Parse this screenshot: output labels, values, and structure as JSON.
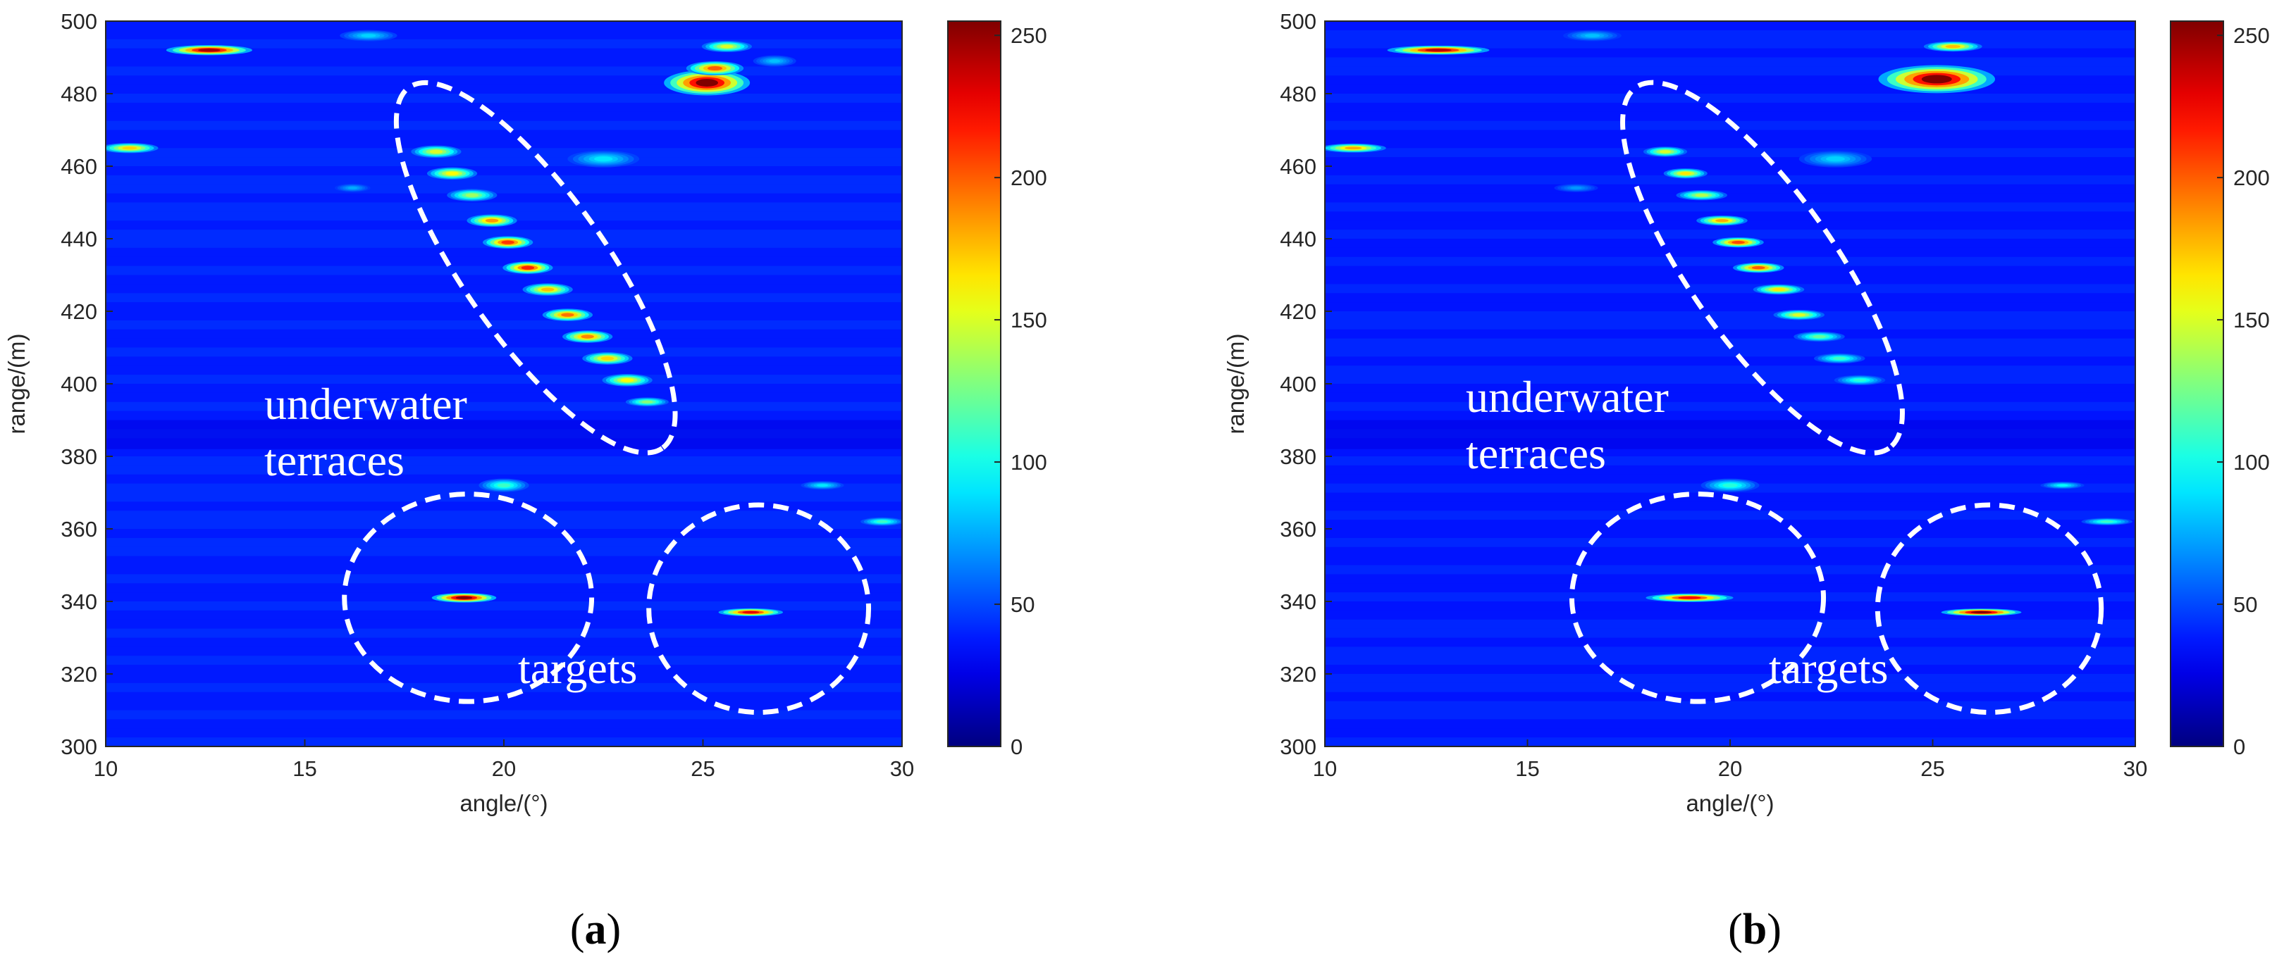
{
  "chart_data": [
    {
      "type": "heatmap",
      "panel_label": "(a)",
      "xlabel": "angle/(°)",
      "ylabel": "range/(m)",
      "xlim": [
        10,
        30
      ],
      "ylim": [
        300,
        500
      ],
      "xticks": [
        10,
        15,
        20,
        25,
        30
      ],
      "yticks": [
        300,
        320,
        340,
        360,
        380,
        400,
        420,
        440,
        460,
        480,
        500
      ],
      "colorbar": {
        "range": [
          0,
          255
        ],
        "ticks": [
          0,
          50,
          100,
          150,
          200,
          250
        ],
        "colormap": "jet"
      },
      "background_level": 40,
      "annotations": [
        {
          "text": "underwater terraces",
          "lines": [
            "underwater",
            "terraces"
          ]
        },
        {
          "text": "targets",
          "lines": [
            "targets"
          ]
        }
      ],
      "highlight_ellipses": [
        {
          "label": "underwater terraces",
          "center": [
            20.8,
            432
          ],
          "semi_axis_angle": 2.0,
          "semi_axis_range": 45,
          "tilt_deg": 55
        },
        {
          "label": "target 1",
          "center": [
            19.1,
            341
          ],
          "semi_axis_angle": 2.7,
          "semi_axis_range": 11,
          "tilt_deg": 0
        },
        {
          "label": "target 2",
          "center": [
            26.4,
            338
          ],
          "semi_axis_angle": 2.4,
          "semi_axis_range": 11,
          "tilt_deg": 0
        }
      ],
      "blobs": [
        {
          "angle": 12.6,
          "range": 492,
          "width": 1.2,
          "height": 1.8,
          "value": 245
        },
        {
          "angle": 10.6,
          "range": 465,
          "width": 0.8,
          "height": 1.8,
          "value": 170
        },
        {
          "angle": 25.1,
          "range": 483,
          "width": 1.2,
          "height": 4.5,
          "value": 255
        },
        {
          "angle": 25.3,
          "range": 487,
          "width": 0.8,
          "height": 2.5,
          "value": 200
        },
        {
          "angle": 25.6,
          "range": 493,
          "width": 0.7,
          "height": 2.0,
          "value": 150
        },
        {
          "angle": 18.3,
          "range": 464,
          "width": 0.7,
          "height": 2.2,
          "value": 150
        },
        {
          "angle": 18.7,
          "range": 458,
          "width": 0.7,
          "height": 2.2,
          "value": 160
        },
        {
          "angle": 19.2,
          "range": 452,
          "width": 0.7,
          "height": 2.2,
          "value": 135
        },
        {
          "angle": 19.7,
          "range": 445,
          "width": 0.7,
          "height": 2.2,
          "value": 185
        },
        {
          "angle": 20.1,
          "range": 439,
          "width": 0.7,
          "height": 2.2,
          "value": 210
        },
        {
          "angle": 20.6,
          "range": 432,
          "width": 0.7,
          "height": 2.2,
          "value": 215
        },
        {
          "angle": 21.1,
          "range": 426,
          "width": 0.7,
          "height": 2.2,
          "value": 175
        },
        {
          "angle": 21.6,
          "range": 419,
          "width": 0.7,
          "height": 2.2,
          "value": 195
        },
        {
          "angle": 22.1,
          "range": 413,
          "width": 0.7,
          "height": 2.2,
          "value": 190
        },
        {
          "angle": 22.6,
          "range": 407,
          "width": 0.7,
          "height": 2.2,
          "value": 170
        },
        {
          "angle": 23.1,
          "range": 401,
          "width": 0.7,
          "height": 2.2,
          "value": 160
        },
        {
          "angle": 23.6,
          "range": 395,
          "width": 0.6,
          "height": 1.6,
          "value": 130
        },
        {
          "angle": 20.0,
          "range": 372,
          "width": 0.7,
          "height": 2.4,
          "value": 110
        },
        {
          "angle": 19.0,
          "range": 341,
          "width": 0.9,
          "height": 1.7,
          "value": 255
        },
        {
          "angle": 26.2,
          "range": 337,
          "width": 0.9,
          "height": 1.4,
          "value": 230
        },
        {
          "angle": 29.5,
          "range": 362,
          "width": 0.6,
          "height": 1.5,
          "value": 110
        },
        {
          "angle": 28.0,
          "range": 372,
          "width": 0.6,
          "height": 1.5,
          "value": 90
        },
        {
          "angle": 16.6,
          "range": 496,
          "width": 0.8,
          "height": 2.0,
          "value": 85
        },
        {
          "angle": 22.5,
          "range": 462,
          "width": 1.0,
          "height": 3.0,
          "value": 90
        },
        {
          "angle": 26.8,
          "range": 489,
          "width": 0.6,
          "height": 2.0,
          "value": 80
        },
        {
          "angle": 16.2,
          "range": 454,
          "width": 0.5,
          "height": 1.5,
          "value": 75
        }
      ]
    },
    {
      "type": "heatmap",
      "panel_label": "(b)",
      "xlabel": "angle/(°)",
      "ylabel": "range/(m)",
      "xlim": [
        10,
        30
      ],
      "ylim": [
        300,
        500
      ],
      "xticks": [
        10,
        15,
        20,
        25,
        30
      ],
      "yticks": [
        300,
        320,
        340,
        360,
        380,
        400,
        420,
        440,
        460,
        480,
        500
      ],
      "colorbar": {
        "range": [
          0,
          255
        ],
        "ticks": [
          0,
          50,
          100,
          150,
          200,
          250
        ],
        "colormap": "jet"
      },
      "background_level": 38,
      "annotations": [
        {
          "text": "underwater terraces",
          "lines": [
            "underwater",
            "terraces"
          ]
        },
        {
          "text": "targets",
          "lines": [
            "targets"
          ]
        }
      ],
      "highlight_ellipses": [
        {
          "label": "underwater terraces",
          "center": [
            20.8,
            432
          ],
          "semi_axis_angle": 2.0,
          "semi_axis_range": 45,
          "tilt_deg": 55
        },
        {
          "label": "target 1",
          "center": [
            19.2,
            341
          ],
          "semi_axis_angle": 2.7,
          "semi_axis_range": 11,
          "tilt_deg": 0
        },
        {
          "label": "target 2",
          "center": [
            26.4,
            338
          ],
          "semi_axis_angle": 2.4,
          "semi_axis_range": 11,
          "tilt_deg": 0
        }
      ],
      "blobs": [
        {
          "angle": 12.8,
          "range": 492,
          "width": 1.4,
          "height": 1.6,
          "value": 240
        },
        {
          "angle": 10.7,
          "range": 465,
          "width": 0.9,
          "height": 1.6,
          "value": 180
        },
        {
          "angle": 25.1,
          "range": 484,
          "width": 1.6,
          "height": 5.0,
          "value": 255
        },
        {
          "angle": 25.5,
          "range": 493,
          "width": 0.8,
          "height": 1.8,
          "value": 175
        },
        {
          "angle": 18.4,
          "range": 464,
          "width": 0.6,
          "height": 1.8,
          "value": 150
        },
        {
          "angle": 18.9,
          "range": 458,
          "width": 0.6,
          "height": 1.8,
          "value": 165
        },
        {
          "angle": 19.3,
          "range": 452,
          "width": 0.7,
          "height": 1.8,
          "value": 140
        },
        {
          "angle": 19.8,
          "range": 445,
          "width": 0.7,
          "height": 1.8,
          "value": 180
        },
        {
          "angle": 20.2,
          "range": 439,
          "width": 0.7,
          "height": 1.8,
          "value": 205
        },
        {
          "angle": 20.7,
          "range": 432,
          "width": 0.7,
          "height": 1.8,
          "value": 200
        },
        {
          "angle": 21.2,
          "range": 426,
          "width": 0.7,
          "height": 1.8,
          "value": 165
        },
        {
          "angle": 21.7,
          "range": 419,
          "width": 0.7,
          "height": 1.8,
          "value": 150
        },
        {
          "angle": 22.2,
          "range": 413,
          "width": 0.7,
          "height": 1.8,
          "value": 120
        },
        {
          "angle": 22.7,
          "range": 407,
          "width": 0.7,
          "height": 1.8,
          "value": 110
        },
        {
          "angle": 23.2,
          "range": 401,
          "width": 0.7,
          "height": 1.8,
          "value": 105
        },
        {
          "angle": 20.0,
          "range": 372,
          "width": 0.8,
          "height": 2.4,
          "value": 105
        },
        {
          "angle": 19.0,
          "range": 341,
          "width": 1.2,
          "height": 1.5,
          "value": 225
        },
        {
          "angle": 26.2,
          "range": 337,
          "width": 1.1,
          "height": 1.3,
          "value": 255
        },
        {
          "angle": 29.3,
          "range": 362,
          "width": 0.7,
          "height": 1.3,
          "value": 110
        },
        {
          "angle": 28.2,
          "range": 372,
          "width": 0.6,
          "height": 1.3,
          "value": 95
        },
        {
          "angle": 16.6,
          "range": 496,
          "width": 0.8,
          "height": 2.0,
          "value": 80
        },
        {
          "angle": 22.6,
          "range": 462,
          "width": 1.0,
          "height": 3.0,
          "value": 85
        },
        {
          "angle": 16.2,
          "range": 454,
          "width": 0.6,
          "height": 1.5,
          "value": 70
        }
      ]
    }
  ]
}
